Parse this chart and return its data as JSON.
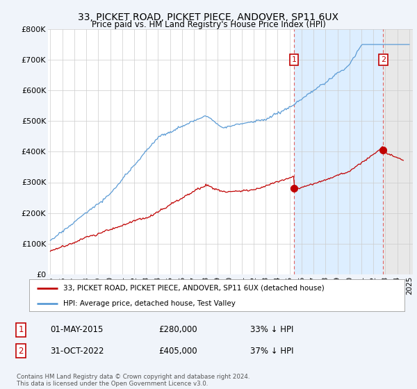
{
  "title": "33, PICKET ROAD, PICKET PIECE, ANDOVER, SP11 6UX",
  "subtitle": "Price paid vs. HM Land Registry's House Price Index (HPI)",
  "ylim": [
    0,
    800000
  ],
  "xlim": [
    1994.8,
    2025.3
  ],
  "yticks": [
    0,
    100000,
    200000,
    300000,
    400000,
    500000,
    600000,
    700000,
    800000
  ],
  "ytick_labels": [
    "£0",
    "£100K",
    "£200K",
    "£300K",
    "£400K",
    "£500K",
    "£600K",
    "£700K",
    "£800K"
  ],
  "xticks": [
    1995,
    1996,
    1997,
    1998,
    1999,
    2000,
    2001,
    2002,
    2003,
    2004,
    2005,
    2006,
    2007,
    2008,
    2009,
    2010,
    2011,
    2012,
    2013,
    2014,
    2015,
    2016,
    2017,
    2018,
    2019,
    2020,
    2021,
    2022,
    2023,
    2024,
    2025
  ],
  "hpi_color": "#5b9bd5",
  "property_color": "#c00000",
  "shade1_color": "#ddeeff",
  "shade2_color": "#e8e8e8",
  "marker1_x": 2015.37,
  "marker1_y": 280000,
  "marker2_x": 2022.83,
  "marker2_y": 405000,
  "legend_label_property": "33, PICKET ROAD, PICKET PIECE, ANDOVER, SP11 6UX (detached house)",
  "legend_label_hpi": "HPI: Average price, detached house, Test Valley",
  "note1_date": "01-MAY-2015",
  "note1_price": "£280,000",
  "note1_hpi": "33% ↓ HPI",
  "note2_date": "31-OCT-2022",
  "note2_price": "£405,000",
  "note2_hpi": "37% ↓ HPI",
  "footer": "Contains HM Land Registry data © Crown copyright and database right 2024.\nThis data is licensed under the Open Government Licence v3.0.",
  "background_color": "#f0f4fa",
  "plot_bg_color": "#ffffff"
}
